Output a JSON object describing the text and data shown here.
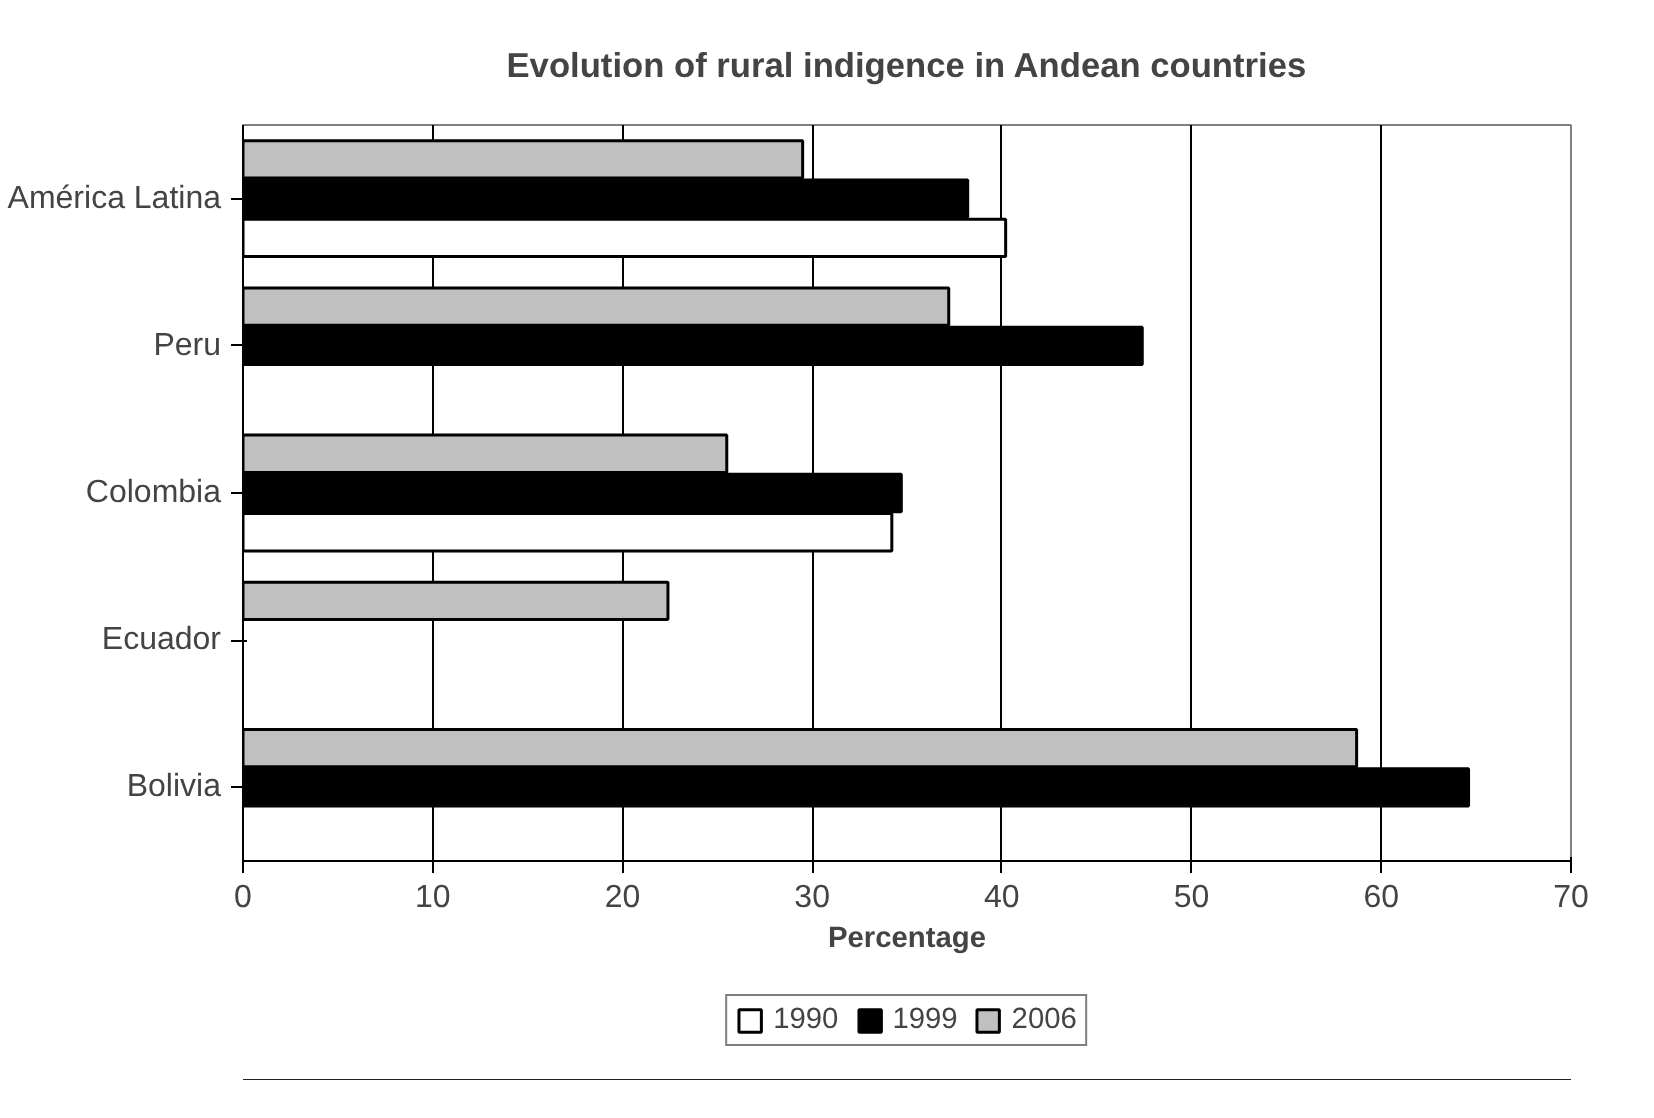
{
  "chart_data": {
    "type": "bar",
    "orientation": "horizontal",
    "title": "Evolution of rural indigence in Andean countries",
    "xlabel": "Percentage",
    "categories": [
      "América Latina",
      "Peru",
      "Colombia",
      "Ecuador",
      "Bolivia"
    ],
    "series": [
      {
        "name": "1990",
        "color": "#ffffff",
        "values": [
          40.2,
          null,
          34.2,
          null,
          null
        ]
      },
      {
        "name": "1999",
        "color": "#000000",
        "values": [
          38.2,
          47.4,
          34.7,
          null,
          64.6
        ]
      },
      {
        "name": "2006",
        "color": "#c0c0c0",
        "values": [
          29.5,
          37.2,
          25.5,
          22.4,
          58.7
        ]
      }
    ],
    "xlim": [
      0,
      70
    ],
    "xticks": [
      0,
      10,
      20,
      30,
      40,
      50,
      60,
      70
    ],
    "grid": "x",
    "legend": "bottom"
  }
}
